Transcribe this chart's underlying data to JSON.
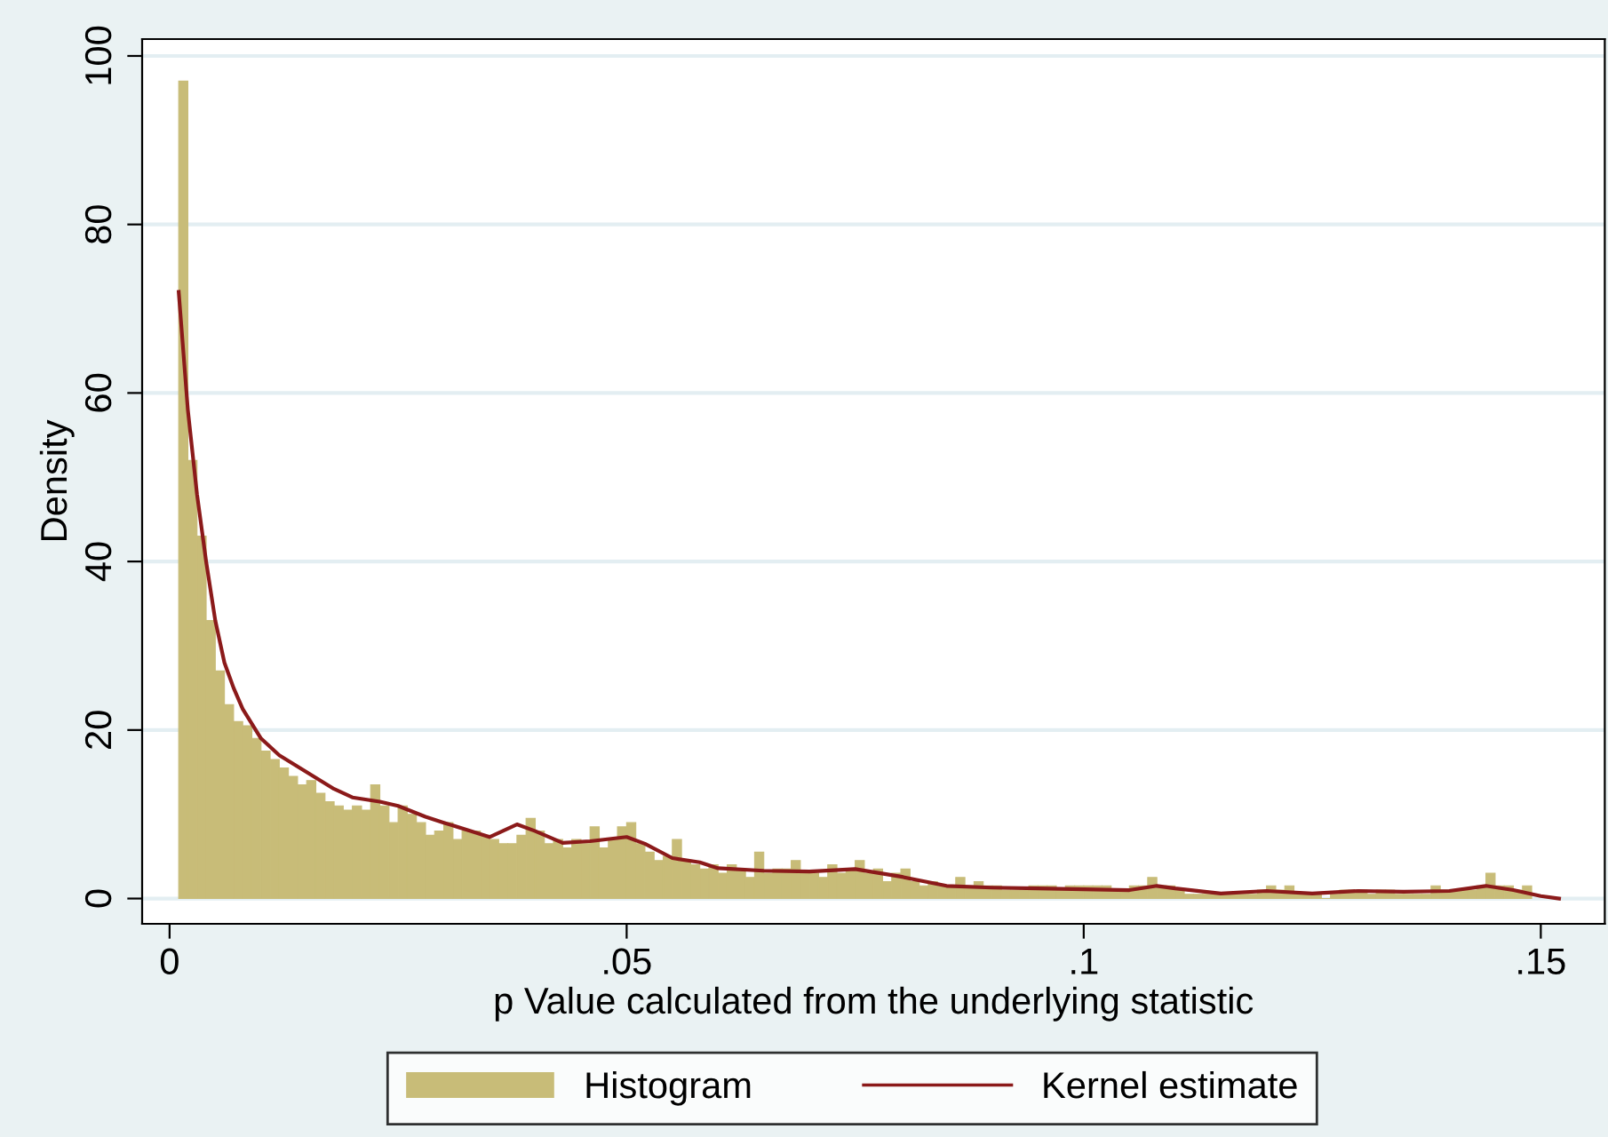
{
  "chart_data": {
    "type": "histogram",
    "xlabel": "p Value calculated from the underlying statistic",
    "ylabel": "Density",
    "xlim": [
      -0.003,
      0.157
    ],
    "ylim": [
      -3,
      102
    ],
    "xticks": [
      0,
      {
        "value": 0.05,
        "label": ".05"
      },
      {
        "value": 0.1,
        "label": ".1"
      },
      {
        "value": 0.15,
        "label": ".15"
      }
    ],
    "yticks": [
      0,
      20,
      40,
      60,
      80,
      100
    ],
    "grid": "y",
    "legend": "bottom",
    "series": [
      {
        "type": "histogram",
        "name": "Histogram",
        "color": "#c8bc78",
        "bins": [
          0.001,
          0.002,
          0.003,
          0.004,
          0.005,
          0.006,
          0.007,
          0.008,
          0.009,
          0.01,
          0.011,
          0.012,
          0.013,
          0.014,
          0.015,
          0.016,
          0.017,
          0.018,
          0.019,
          0.02,
          0.021,
          0.022,
          0.023,
          0.024,
          0.025,
          0.026,
          0.027,
          0.028,
          0.029,
          0.03,
          0.031,
          0.032,
          0.033,
          0.034,
          0.035,
          0.036,
          0.037,
          0.038,
          0.039,
          0.04,
          0.041,
          0.042,
          0.043,
          0.044,
          0.045,
          0.046,
          0.047,
          0.048,
          0.049,
          0.05,
          0.051,
          0.052,
          0.053,
          0.054,
          0.055,
          0.056,
          0.057,
          0.058,
          0.059,
          0.06,
          0.061,
          0.062,
          0.063,
          0.064,
          0.065,
          0.066,
          0.067,
          0.068,
          0.069,
          0.07,
          0.071,
          0.072,
          0.073,
          0.074,
          0.075,
          0.076,
          0.077,
          0.078,
          0.079,
          0.08,
          0.081,
          0.082,
          0.083,
          0.084,
          0.085,
          0.086,
          0.087,
          0.088,
          0.089,
          0.09,
          0.091,
          0.092,
          0.093,
          0.094,
          0.095,
          0.096,
          0.097,
          0.098,
          0.099,
          0.1,
          0.101,
          0.102,
          0.103,
          0.104,
          0.105,
          0.106,
          0.107,
          0.108,
          0.109,
          0.11,
          0.111,
          0.112,
          0.113,
          0.114,
          0.115,
          0.116,
          0.117,
          0.118,
          0.119,
          0.12,
          0.121,
          0.122,
          0.123,
          0.124,
          0.125,
          0.126,
          0.127,
          0.128,
          0.129,
          0.13,
          0.131,
          0.132,
          0.133,
          0.134,
          0.135,
          0.136,
          0.137,
          0.138,
          0.139,
          0.14,
          0.141,
          0.142,
          0.143,
          0.144,
          0.145,
          0.146,
          0.147,
          0.148,
          0.149,
          0.15
        ],
        "values": [
          97,
          52,
          43,
          33,
          27,
          23,
          21,
          20.5,
          19,
          17.5,
          16.5,
          15.5,
          14.5,
          13.5,
          14,
          12.5,
          11.5,
          11,
          10.5,
          11,
          10.5,
          13.5,
          11,
          9,
          11,
          10,
          9,
          7.5,
          8,
          9,
          7,
          8,
          8,
          7.5,
          7,
          6.5,
          6.5,
          7.5,
          9.5,
          8,
          6.5,
          7,
          6,
          7,
          6.5,
          8.5,
          6,
          7,
          8.5,
          9,
          6.5,
          5.5,
          4.5,
          5,
          7,
          4.5,
          4,
          3.5,
          4,
          3,
          4,
          3.5,
          2.5,
          5.5,
          3,
          3.5,
          3.5,
          4.5,
          3,
          3,
          2.5,
          4,
          3,
          3.5,
          4.5,
          3,
          3.5,
          2,
          3,
          3.5,
          2,
          1.5,
          2,
          1.5,
          1.5,
          2.5,
          1.5,
          2,
          1.5,
          1.5,
          1,
          1,
          1,
          1.5,
          1.5,
          1.5,
          1,
          1.5,
          1.5,
          1.5,
          1.5,
          1.5,
          1,
          1,
          1.5,
          1.5,
          2.5,
          1.5,
          1.5,
          1,
          0.5,
          0.5,
          0.5,
          0.5,
          0.5,
          0.5,
          0.5,
          0.5,
          1,
          1.5,
          1,
          1.5,
          0.5,
          0.5,
          0.5,
          0,
          0.5,
          1,
          1,
          1,
          0.5,
          1,
          1,
          0.5,
          0.5,
          0.5,
          0.5,
          1.5,
          1,
          1,
          1,
          1,
          1.5,
          3,
          1.5,
          1.5,
          1,
          1.5,
          null
        ]
      },
      {
        "type": "line",
        "name": "Kernel estimate",
        "color": "#8b1a1a",
        "x": [
          0.001,
          0.002,
          0.003,
          0.004,
          0.005,
          0.006,
          0.007,
          0.008,
          0.01,
          0.012,
          0.015,
          0.018,
          0.02,
          0.023,
          0.025,
          0.028,
          0.03,
          0.033,
          0.035,
          0.038,
          0.04,
          0.043,
          0.046,
          0.05,
          0.052,
          0.055,
          0.058,
          0.06,
          0.065,
          0.07,
          0.075,
          0.08,
          0.085,
          0.09,
          0.095,
          0.1,
          0.105,
          0.108,
          0.11,
          0.115,
          0.12,
          0.125,
          0.13,
          0.135,
          0.14,
          0.144,
          0.147,
          0.15,
          0.152
        ],
        "values": [
          72,
          58,
          48,
          40,
          33,
          28,
          25,
          22.5,
          19,
          17,
          15,
          13,
          12,
          11.5,
          11,
          9.7,
          9,
          8,
          7.3,
          8.8,
          8,
          6.6,
          6.8,
          7.3,
          6.5,
          4.8,
          4.3,
          3.6,
          3.3,
          3.2,
          3.5,
          2.6,
          1.5,
          1.3,
          1.2,
          1.1,
          1,
          1.5,
          1.2,
          0.6,
          0.9,
          0.6,
          0.9,
          0.8,
          0.9,
          1.5,
          1,
          0.3,
          0
        ]
      }
    ]
  }
}
